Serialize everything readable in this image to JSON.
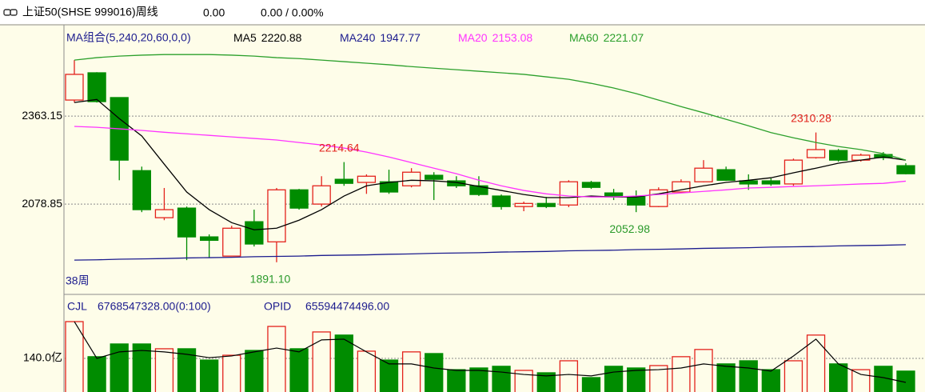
{
  "chart_data": [
    {
      "type": "candlestick",
      "title": "上证50(SHSE 999016)周线",
      "header_values": [
        "0.00",
        "0.00 / 0.00%"
      ],
      "panel_label": "MA组合(5,240,20,60,0,0)",
      "period_label": "38周",
      "ylim": [
        1795,
        2640
      ],
      "yticks": [
        2363.15,
        2078.85
      ],
      "grid": true,
      "up_color": "#e3221c",
      "down_color": "#008c00",
      "candles": {
        "open": [
          2415,
          2503,
          2423,
          2187,
          2035,
          2066,
          1973,
          1911,
          2022,
          1957,
          2125,
          2079,
          2159,
          2149,
          2151,
          2138,
          2172,
          2154,
          2138,
          2105,
          2071,
          2081,
          2076,
          2149,
          2115,
          2102,
          2071,
          2118,
          2151,
          2190,
          2154,
          2154,
          2144,
          2229,
          2252,
          2221,
          2239,
          2203
        ],
        "high": [
          2544,
          2505,
          2423,
          2200,
          2131,
          2071,
          1981,
          2009,
          2061,
          2131,
          2128,
          2169,
          2214.64,
          2175,
          2190,
          2195,
          2182,
          2169,
          2169,
          2110,
          2087,
          2102,
          2156,
          2154,
          2128,
          2123,
          2133,
          2159,
          2221,
          2200,
          2175,
          2162,
          2226,
          2310.28,
          2257,
          2242,
          2247,
          2211
        ],
        "low": [
          2407,
          2407,
          2156,
          2053,
          2027,
          1898,
          1906,
          1911,
          1942,
          1891.1,
          2061,
          2071,
          2138,
          2112,
          2112,
          2133,
          2092,
          2131,
          2105,
          2061,
          2056,
          2066,
          2069,
          2128,
          2092,
          2052.98,
          2069,
          2115,
          2149,
          2154,
          2125,
          2138,
          2138,
          2226,
          2216,
          2216,
          2221,
          2175
        ],
        "close": [
          2498,
          2410,
          2221,
          2061,
          2061,
          1973,
          1962,
          2001,
          1950,
          2125,
          2066,
          2138,
          2146,
          2169,
          2118,
          2182,
          2159,
          2138,
          2110,
          2071,
          2081,
          2071,
          2151,
          2133,
          2102,
          2076,
          2125,
          2151,
          2195,
          2156,
          2144,
          2144,
          2221,
          2255,
          2221,
          2237,
          2229,
          2177
        ]
      },
      "series": [
        {
          "name": "MA5",
          "color": "#000000",
          "values": [
            2407,
            2417,
            2355,
            2299,
            2208,
            2118,
            2061,
            2019,
            1996,
            2001,
            2027,
            2061,
            2105,
            2138,
            2149,
            2156,
            2154,
            2149,
            2136,
            2123,
            2110,
            2100,
            2100,
            2105,
            2102,
            2102,
            2112,
            2125,
            2138,
            2149,
            2156,
            2164,
            2180,
            2195,
            2211,
            2221,
            2231,
            2220.88
          ]
        },
        {
          "name": "MA240",
          "color": "#1c1c8e",
          "values": [
            1898,
            1899,
            1901,
            1902,
            1903,
            1905,
            1906,
            1907,
            1909,
            1910,
            1911,
            1913,
            1914,
            1915,
            1917,
            1918,
            1920,
            1921,
            1922,
            1924,
            1925,
            1926,
            1928,
            1929,
            1930,
            1932,
            1933,
            1934,
            1936,
            1937,
            1938,
            1940,
            1941,
            1942,
            1944,
            1945,
            1946,
            1947.77
          ]
        },
        {
          "name": "MA20",
          "color": "#ff33ff",
          "values": [
            2330,
            2327,
            2322,
            2317,
            2311,
            2306,
            2301,
            2296,
            2291,
            2286,
            2278,
            2270,
            2260,
            2247,
            2231,
            2213,
            2195,
            2177,
            2156,
            2138,
            2123,
            2112,
            2105,
            2102,
            2102,
            2105,
            2110,
            2115,
            2120,
            2125,
            2131,
            2133,
            2136,
            2138,
            2141,
            2144,
            2146,
            2153.08
          ]
        },
        {
          "name": "MA60",
          "color": "#2ca02c",
          "values": [
            2544,
            2552,
            2557,
            2560,
            2562,
            2562,
            2562,
            2560,
            2557,
            2552,
            2549,
            2544,
            2539,
            2534,
            2529,
            2523,
            2518,
            2513,
            2508,
            2503,
            2498,
            2490,
            2482,
            2469,
            2454,
            2436,
            2415,
            2394,
            2374,
            2353,
            2332,
            2310,
            2293,
            2278,
            2265,
            2255,
            2242,
            2221.07
          ]
        }
      ],
      "annotations": [
        {
          "value": 2214.64,
          "label": "2214.64"
        },
        {
          "value": 1891.1,
          "label": "1891.10"
        },
        {
          "value": 2052.98,
          "label": "2052.98"
        },
        {
          "value": 2310.28,
          "label": "2310.28"
        }
      ]
    },
    {
      "type": "bar",
      "header": [
        "CJL",
        "6768547328.00(0:100)",
        "OPID",
        "65594474496.00"
      ],
      "ylim": [
        0,
        393
      ],
      "yticks": [
        {
          "value": 140,
          "label": "140.0亿"
        }
      ],
      "grid": true,
      "values": [
        293,
        147,
        200,
        200,
        180,
        180,
        133,
        153,
        173,
        273,
        180,
        250,
        237,
        170,
        133,
        167,
        160,
        93,
        100,
        107,
        90,
        80,
        130,
        60,
        107,
        100,
        110,
        147,
        177,
        117,
        130,
        93,
        130,
        237,
        117,
        93,
        107,
        87
      ],
      "ma": {
        "color": "#000000",
        "values": [
          293,
          140,
          167,
          173,
          167,
          157,
          143,
          150,
          167,
          183,
          167,
          217,
          220,
          167,
          117,
          117,
          100,
          90,
          90,
          83,
          73,
          67,
          73,
          67,
          83,
          90,
          93,
          100,
          117,
          107,
          100,
          87,
          150,
          220,
          117,
          73,
          60,
          40
        ]
      }
    }
  ]
}
